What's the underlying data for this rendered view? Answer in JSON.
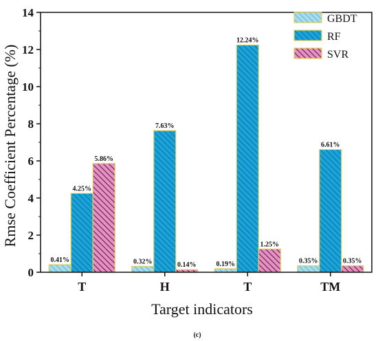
{
  "chart_data": {
    "type": "bar",
    "categories": [
      "T",
      "H",
      "T",
      "TM"
    ],
    "series": [
      {
        "name": "GBDT",
        "values": [
          0.41,
          0.32,
          0.19,
          0.35
        ],
        "labels": [
          "0.41%",
          "0.32%",
          "0.19%",
          "0.35%"
        ],
        "fill": "#a8dcec",
        "hatch": "#5bb8cf",
        "hatch_dir": "back"
      },
      {
        "name": "RF",
        "values": [
          4.25,
          7.63,
          12.24,
          6.61
        ],
        "labels": [
          "4.25%",
          "7.63%",
          "12.24%",
          "6.61%"
        ],
        "fill": "#1aa5da",
        "hatch": "#0d6fa0",
        "hatch_dir": "back"
      },
      {
        "name": "SVR",
        "values": [
          5.86,
          0.14,
          1.25,
          0.35
        ],
        "labels": [
          "5.86%",
          "0.14%",
          "1.25%",
          "0.35%"
        ],
        "fill": "#e98fc4",
        "hatch": "#4a2040",
        "hatch_dir": "back"
      }
    ],
    "bar_outline": "#e2cf5a",
    "xlabel": "Target indicators",
    "ylabel": "Rmse Coefficient Percentage (%)",
    "ylim": [
      0,
      14
    ],
    "yticks": [
      "0",
      "2",
      "4",
      "6",
      "8",
      "10",
      "12",
      "14"
    ],
    "grid": false,
    "legend_position": "top-right",
    "caption": "(c)"
  }
}
